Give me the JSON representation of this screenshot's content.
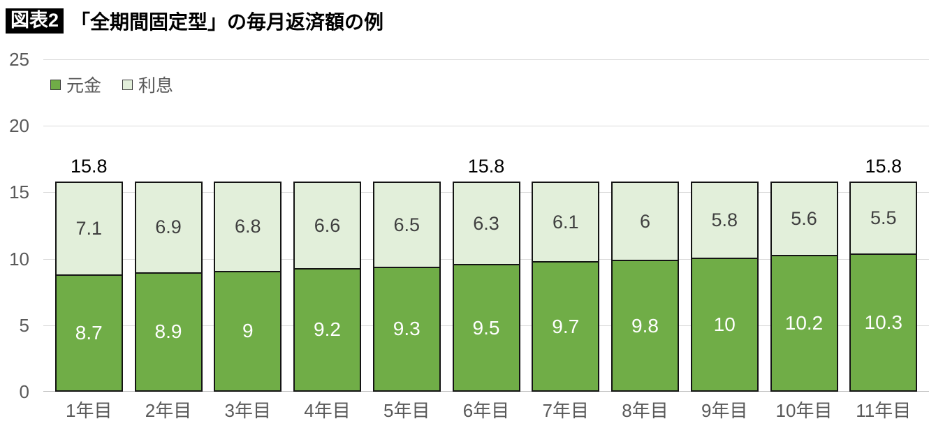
{
  "header": {
    "badge": "図表2",
    "title": "「全期間固定型」の毎月返済額の例"
  },
  "colors": {
    "principal_green": "#70AD47",
    "interest_light_green": "#E2EFDA",
    "bar_border": "#141414",
    "axis_text": "#595959",
    "gridline": "#d9d9d9"
  },
  "chart_data": {
    "type": "bar",
    "stacked": true,
    "title": "「全期間固定型」の毎月返済額の例",
    "categories": [
      "1年目",
      "2年目",
      "3年目",
      "4年目",
      "5年目",
      "6年目",
      "7年目",
      "8年目",
      "9年目",
      "10年目",
      "11年目"
    ],
    "series": [
      {
        "name": "元金",
        "color": "#70AD47",
        "values": [
          8.7,
          8.9,
          9,
          9.2,
          9.3,
          9.5,
          9.7,
          9.8,
          10,
          10.2,
          10.3
        ]
      },
      {
        "name": "利息",
        "color": "#E2EFDA",
        "values": [
          7.1,
          6.9,
          6.8,
          6.6,
          6.5,
          6.3,
          6.1,
          6,
          5.8,
          5.6,
          5.5
        ]
      }
    ],
    "total_labels": [
      "15.8",
      "",
      "",
      "",
      "",
      "15.8",
      "",
      "",
      "",
      "",
      "15.8"
    ],
    "yticks": [
      0,
      5,
      10,
      15,
      20,
      25
    ],
    "ylim": [
      0,
      25
    ],
    "xlabel": "",
    "ylabel": "",
    "grid": true,
    "legend_position": "top-left"
  }
}
